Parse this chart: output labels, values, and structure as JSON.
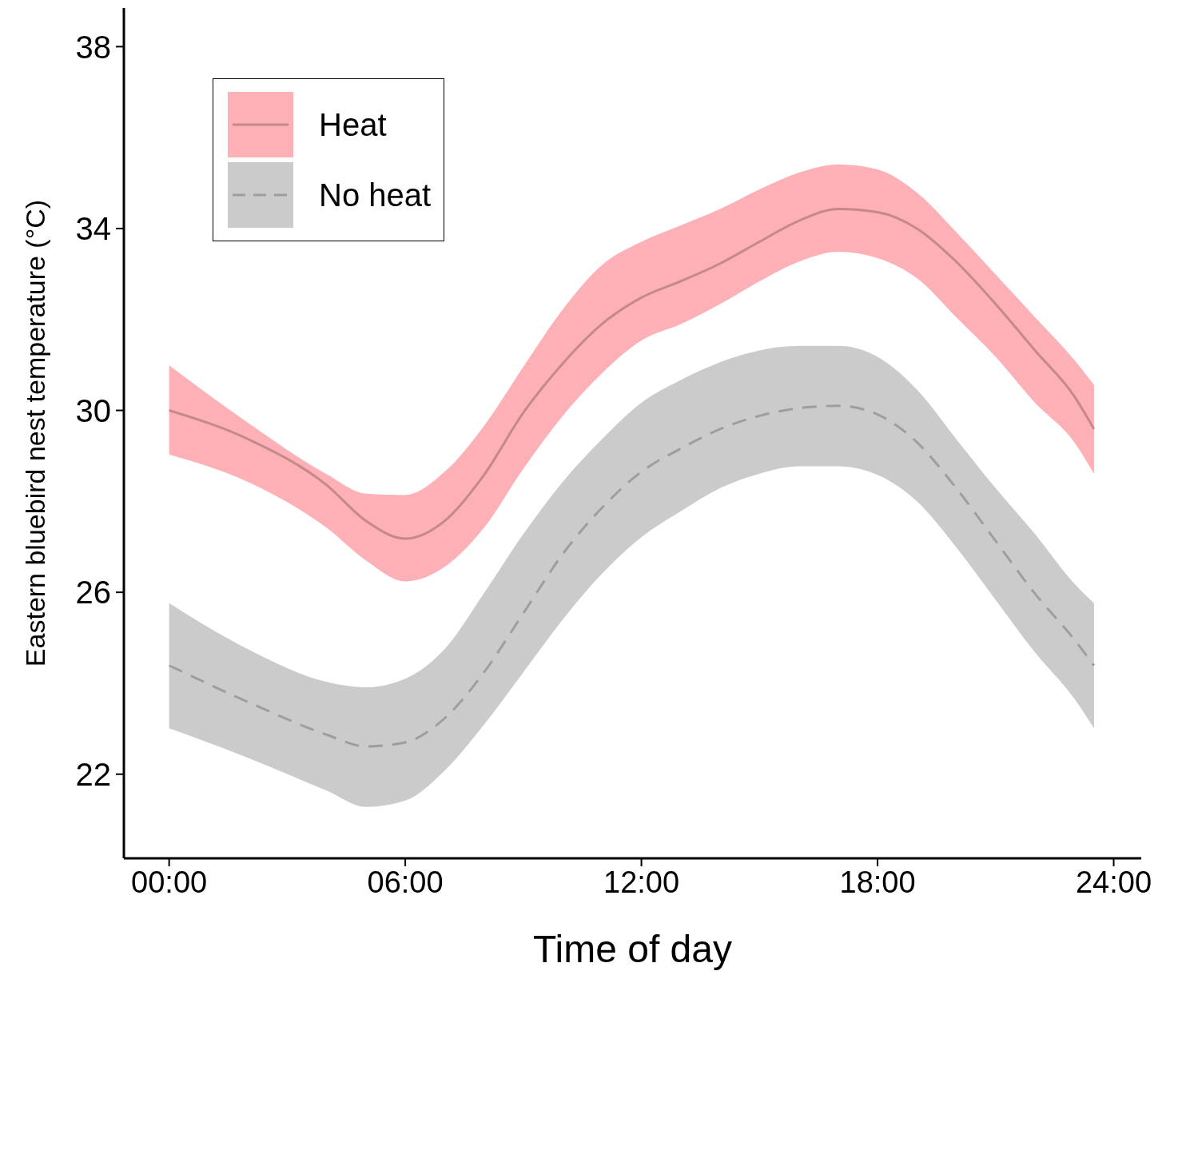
{
  "chart_data": {
    "type": "line",
    "xlabel": "Time of day",
    "ylabel": "Eastern bluebird nest temperature (°C)",
    "x": [
      0,
      2,
      4,
      5,
      6,
      7,
      8,
      9,
      10,
      11,
      12,
      13,
      14,
      15,
      16,
      17,
      18,
      19,
      20,
      21,
      22,
      23,
      23.5
    ],
    "xlim": [
      -1.15,
      24.7
    ],
    "xticks": [
      {
        "value": 0,
        "label": "00:00"
      },
      {
        "value": 6,
        "label": "06:00"
      },
      {
        "value": 12,
        "label": "12:00"
      },
      {
        "value": 18,
        "label": "18:00"
      },
      {
        "value": 24,
        "label": "24:00"
      }
    ],
    "ylim": [
      20.15,
      38.85
    ],
    "yticks": [
      22,
      26,
      30,
      34,
      38
    ],
    "legend": "top left",
    "marker": "none",
    "series": [
      {
        "name": "Heat",
        "color": "#c5898d",
        "line_style": "solid",
        "values": [
          30.0,
          29.37,
          28.36,
          27.57,
          27.18,
          27.57,
          28.58,
          29.95,
          31.03,
          31.9,
          32.48,
          32.84,
          33.23,
          33.71,
          34.17,
          34.43,
          34.36,
          34.0,
          33.27,
          32.34,
          31.32,
          30.31,
          29.59
        ],
        "upper": [
          30.99,
          29.73,
          28.6,
          28.17,
          28.14,
          28.65,
          29.66,
          30.96,
          32.22,
          33.2,
          33.71,
          34.07,
          34.43,
          34.86,
          35.23,
          35.41,
          35.3,
          34.79,
          33.92,
          32.99,
          32.05,
          31.11,
          30.56
        ],
        "lower": [
          29.03,
          28.43,
          27.42,
          26.7,
          26.24,
          26.56,
          27.42,
          28.72,
          29.88,
          30.82,
          31.54,
          31.9,
          32.34,
          32.84,
          33.27,
          33.49,
          33.35,
          32.91,
          32.05,
          31.18,
          30.17,
          29.3,
          28.61
        ]
      },
      {
        "name": "No heat",
        "color": "#9e9e9e",
        "line_style": "dashed",
        "values": [
          24.39,
          23.59,
          22.87,
          22.61,
          22.7,
          23.23,
          24.24,
          25.54,
          26.84,
          27.86,
          28.65,
          29.16,
          29.59,
          29.88,
          30.05,
          30.1,
          29.91,
          29.3,
          28.29,
          27.13,
          25.97,
          24.96,
          24.39
        ],
        "upper": [
          25.76,
          24.75,
          24.03,
          23.91,
          24.1,
          24.75,
          25.98,
          27.28,
          28.43,
          29.37,
          30.17,
          30.67,
          31.06,
          31.32,
          31.42,
          31.42,
          31.18,
          30.46,
          29.37,
          28.29,
          27.28,
          26.19,
          25.76
        ],
        "lower": [
          23.01,
          22.36,
          21.64,
          21.28,
          21.42,
          22.08,
          23.09,
          24.24,
          25.4,
          26.41,
          27.21,
          27.78,
          28.29,
          28.61,
          28.77,
          28.77,
          28.58,
          28.0,
          26.99,
          25.83,
          24.68,
          23.66,
          23.01
        ]
      }
    ]
  }
}
